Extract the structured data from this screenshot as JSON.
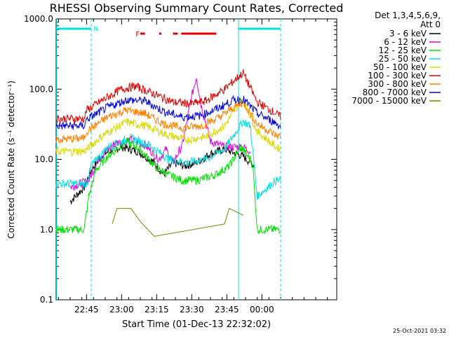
{
  "chart_data": {
    "type": "line",
    "title": "RHESSI Observing Summary Count Rates, Corrected",
    "xlabel": "Start Time (01-Dec-13 22:32:02)",
    "ylabel": "Corrected Count Rate (s⁻¹ detector⁻¹)",
    "yscale": "log",
    "ylim": [
      0.1,
      1000
    ],
    "xlim_minutes": [
      0,
      120
    ],
    "y_ticks": [
      {
        "value": 1000,
        "label": "1000.0"
      },
      {
        "value": 100,
        "label": "100.0"
      },
      {
        "value": 10,
        "label": "10.0"
      },
      {
        "value": 1,
        "label": "1.0"
      },
      {
        "value": 0.1,
        "label": "0.1"
      }
    ],
    "x_ticks": [
      {
        "minute": 13,
        "label": "22:45"
      },
      {
        "minute": 28,
        "label": "23:00"
      },
      {
        "minute": 43,
        "label": "23:15"
      },
      {
        "minute": 58,
        "label": "23:30"
      },
      {
        "minute": 73,
        "label": "23:45"
      },
      {
        "minute": 88,
        "label": "00:00"
      }
    ],
    "legend": {
      "position": "right",
      "header": [
        "Det 1,3,4,5,6,9,",
        "Att 0"
      ]
    },
    "series": [
      {
        "name": "3 - 6 keV",
        "color": "#000000",
        "points": [
          [
            6,
            2.5
          ],
          [
            12,
            4
          ],
          [
            15,
            7
          ],
          [
            20,
            12
          ],
          [
            28,
            15
          ],
          [
            35,
            13
          ],
          [
            42,
            9
          ],
          [
            46,
            6
          ],
          [
            50,
            9
          ],
          [
            55,
            8
          ],
          [
            60,
            9
          ],
          [
            66,
            12
          ],
          [
            72,
            14
          ],
          [
            80,
            11
          ],
          [
            85,
            8
          ]
        ]
      },
      {
        "name": "6 - 12 keV",
        "color": "#e000e0",
        "points": [
          [
            6,
            4
          ],
          [
            14,
            5
          ],
          [
            18,
            10
          ],
          [
            25,
            17
          ],
          [
            32,
            19
          ],
          [
            38,
            16
          ],
          [
            44,
            10
          ],
          [
            47,
            14
          ],
          [
            50,
            9
          ],
          [
            54,
            16
          ],
          [
            58,
            80
          ],
          [
            60,
            150
          ],
          [
            62,
            60
          ],
          [
            66,
            18
          ],
          [
            72,
            15
          ],
          [
            80,
            15
          ],
          [
            83,
            13
          ]
        ]
      },
      {
        "name": "12 - 25 keV",
        "color": "#00e000",
        "points": [
          [
            0,
            1
          ],
          [
            12,
            1
          ],
          [
            14,
            3
          ],
          [
            17,
            7
          ],
          [
            22,
            11
          ],
          [
            30,
            18
          ],
          [
            36,
            14
          ],
          [
            42,
            8
          ],
          [
            48,
            6
          ],
          [
            54,
            5
          ],
          [
            60,
            5
          ],
          [
            68,
            6
          ],
          [
            74,
            8
          ],
          [
            79,
            15
          ],
          [
            84,
            9
          ],
          [
            86,
            1
          ],
          [
            96,
            1
          ]
        ]
      },
      {
        "name": "25 - 50 keV",
        "color": "#00e0e0",
        "points": [
          [
            0,
            4.5
          ],
          [
            13,
            4.5
          ],
          [
            15,
            8
          ],
          [
            22,
            15
          ],
          [
            32,
            20
          ],
          [
            40,
            16
          ],
          [
            48,
            10
          ],
          [
            56,
            9
          ],
          [
            64,
            10
          ],
          [
            72,
            14
          ],
          [
            80,
            35
          ],
          [
            83,
            30
          ],
          [
            86,
            3
          ],
          [
            94,
            5
          ],
          [
            96,
            5
          ]
        ]
      },
      {
        "name": "50 - 100 keV",
        "color": "#d8d800",
        "points": [
          [
            0,
            13
          ],
          [
            12,
            13
          ],
          [
            20,
            22
          ],
          [
            30,
            34
          ],
          [
            38,
            30
          ],
          [
            48,
            22
          ],
          [
            56,
            19
          ],
          [
            64,
            21
          ],
          [
            72,
            30
          ],
          [
            78,
            60
          ],
          [
            80,
            70
          ],
          [
            86,
            25
          ],
          [
            94,
            15
          ],
          [
            96,
            14
          ]
        ]
      },
      {
        "name": "100 - 300 keV",
        "color": "#e00000",
        "points": [
          [
            0,
            38
          ],
          [
            12,
            38
          ],
          [
            13,
            50
          ],
          [
            20,
            70
          ],
          [
            28,
            100
          ],
          [
            34,
            110
          ],
          [
            42,
            85
          ],
          [
            50,
            65
          ],
          [
            58,
            62
          ],
          [
            64,
            68
          ],
          [
            72,
            100
          ],
          [
            78,
            150
          ],
          [
            80,
            170
          ],
          [
            86,
            65
          ],
          [
            94,
            45
          ],
          [
            96,
            40
          ]
        ]
      },
      {
        "name": "300 - 800 keV",
        "color": "#ff8000",
        "points": [
          [
            0,
            19
          ],
          [
            12,
            20
          ],
          [
            13,
            25
          ],
          [
            22,
            40
          ],
          [
            30,
            50
          ],
          [
            38,
            45
          ],
          [
            46,
            32
          ],
          [
            54,
            28
          ],
          [
            62,
            30
          ],
          [
            70,
            40
          ],
          [
            76,
            55
          ],
          [
            80,
            65
          ],
          [
            86,
            32
          ],
          [
            94,
            22
          ],
          [
            96,
            21
          ]
        ]
      },
      {
        "name": "800 - 7000 keV",
        "color": "#0000e0",
        "points": [
          [
            0,
            30
          ],
          [
            12,
            30
          ],
          [
            13,
            37
          ],
          [
            22,
            55
          ],
          [
            30,
            70
          ],
          [
            38,
            68
          ],
          [
            46,
            48
          ],
          [
            54,
            40
          ],
          [
            62,
            42
          ],
          [
            70,
            55
          ],
          [
            76,
            70
          ],
          [
            80,
            72
          ],
          [
            86,
            45
          ],
          [
            94,
            33
          ],
          [
            96,
            29
          ]
        ]
      },
      {
        "name": "7000 - 15000 keV",
        "color": "#808000",
        "points": [
          [
            24,
            1.2
          ],
          [
            26,
            2
          ],
          [
            32,
            2
          ],
          [
            36,
            1.3
          ],
          [
            42,
            0.8
          ],
          [
            72,
            1.2
          ],
          [
            74,
            2
          ],
          [
            80,
            1.6
          ]
        ]
      }
    ],
    "annotations": {
      "flag_N": "N",
      "flag_F": "F"
    }
  },
  "footer": {
    "timestamp": "25-Oct-2021 03:32"
  }
}
